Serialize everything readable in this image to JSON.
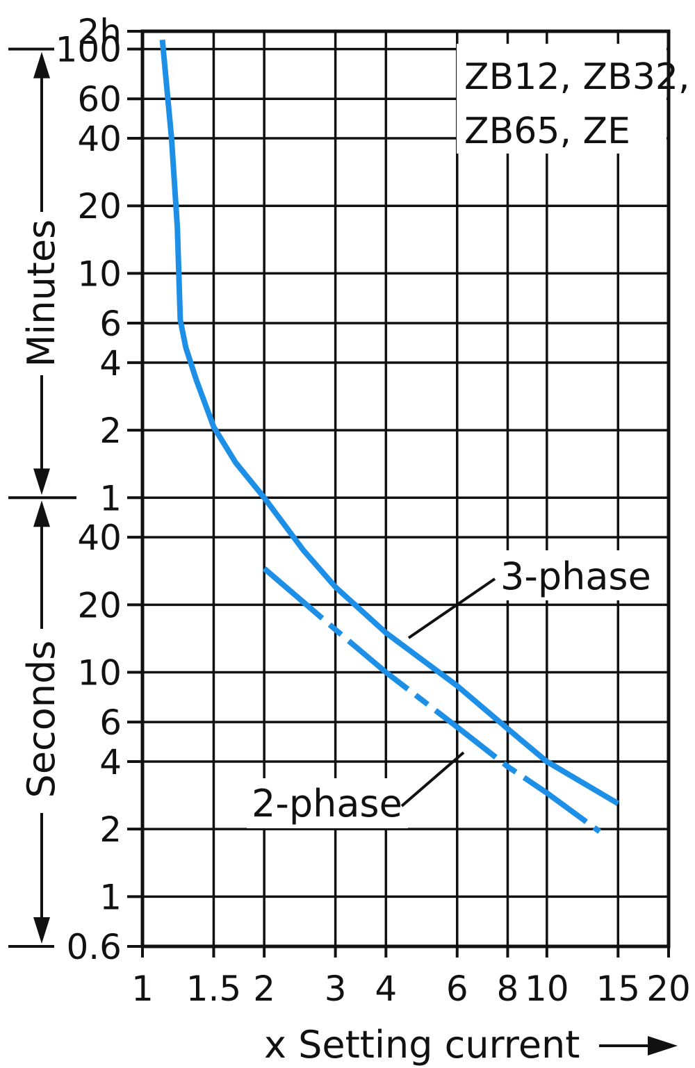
{
  "chart_data": {
    "type": "line",
    "title": "ZB12, ZB32, ZB65, ZE",
    "xlabel": "x Setting current",
    "x_scale": "log",
    "y_scale": "log",
    "xlim": [
      1,
      20
    ],
    "ylim_seconds": [
      0.6,
      7200
    ],
    "grid": true,
    "x_ticks": [
      {
        "value": 1,
        "label": "1"
      },
      {
        "value": 1.5,
        "label": "1.5"
      },
      {
        "value": 2,
        "label": "2"
      },
      {
        "value": 3,
        "label": "3"
      },
      {
        "value": 4,
        "label": "4"
      },
      {
        "value": 6,
        "label": "6"
      },
      {
        "value": 8,
        "label": "8"
      },
      {
        "value": 10,
        "label": "10"
      },
      {
        "value": 15,
        "label": "15"
      },
      {
        "value": 20,
        "label": "20"
      }
    ],
    "y_ticks": [
      {
        "seconds": 7200,
        "label": "2h"
      },
      {
        "seconds": 6000,
        "label": "100"
      },
      {
        "seconds": 3600,
        "label": "60"
      },
      {
        "seconds": 2400,
        "label": "40"
      },
      {
        "seconds": 1200,
        "label": "20"
      },
      {
        "seconds": 600,
        "label": "10"
      },
      {
        "seconds": 360,
        "label": "6"
      },
      {
        "seconds": 240,
        "label": "4"
      },
      {
        "seconds": 120,
        "label": "2"
      },
      {
        "seconds": 60,
        "label": "1"
      },
      {
        "seconds": 40,
        "label": "40"
      },
      {
        "seconds": 20,
        "label": "20"
      },
      {
        "seconds": 10,
        "label": "10"
      },
      {
        "seconds": 6,
        "label": "6"
      },
      {
        "seconds": 4,
        "label": "4"
      },
      {
        "seconds": 2,
        "label": "2"
      },
      {
        "seconds": 1,
        "label": "1"
      },
      {
        "seconds": 0.6,
        "label": "0.6"
      }
    ],
    "axis_groups": [
      {
        "label": "Minutes",
        "from_seconds": 6000,
        "to_seconds": 60
      },
      {
        "label": "Seconds",
        "from_seconds": 60,
        "to_seconds": 0.6
      }
    ],
    "series": [
      {
        "name": "3-phase",
        "style": "solid",
        "color": "#1e8fe6",
        "x": [
          1.12,
          1.18,
          1.22,
          1.24,
          1.28,
          1.36,
          1.5,
          1.7,
          2.0,
          2.5,
          3.0,
          4.0,
          6.0,
          8.0,
          10.0,
          15.0
        ],
        "y_seconds": [
          6600,
          2400,
          960,
          372,
          280,
          200,
          124,
          86,
          60,
          35,
          24,
          15,
          8.7,
          5.6,
          4.0,
          2.6
        ]
      },
      {
        "name": "2-phase",
        "style": "dash-dot",
        "color": "#1e8fe6",
        "x": [
          2.0,
          3.0,
          4.0,
          6.0,
          8.0,
          10.0,
          13.5
        ],
        "y_seconds": [
          29,
          15.5,
          10,
          5.7,
          3.8,
          2.9,
          1.95
        ]
      }
    ]
  }
}
